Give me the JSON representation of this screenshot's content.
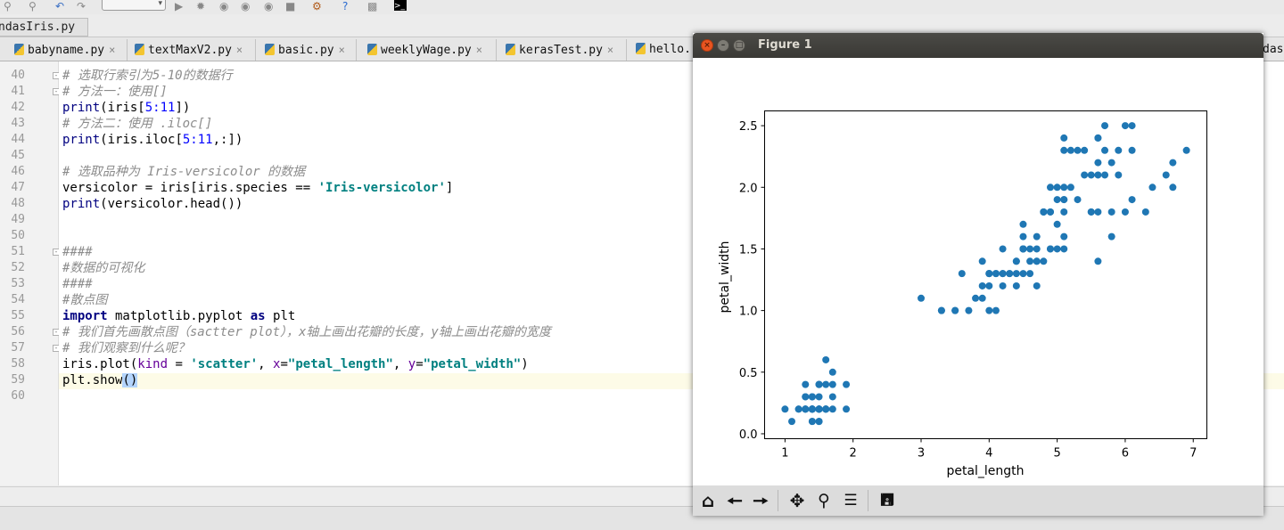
{
  "breadcrumb": {
    "file": "ndasIris.py"
  },
  "editor_tabs": [
    {
      "label": "babyname.py"
    },
    {
      "label": "textMaxV2.py"
    },
    {
      "label": "basic.py"
    },
    {
      "label": "weeklyWage.py"
    },
    {
      "label": "kerasTest.py"
    },
    {
      "label": "hello."
    },
    {
      "label": "das"
    }
  ],
  "code": {
    "line_numbers": [
      "40",
      "41",
      "42",
      "43",
      "44",
      "45",
      "46",
      "47",
      "48",
      "49",
      "50",
      "51",
      "52",
      "53",
      "54",
      "55",
      "56",
      "57",
      "58",
      "59",
      "60"
    ],
    "l40": "# 选取行索引为5-10的数据行",
    "l41": "# 方法一：使用[]",
    "l42_fn": "print",
    "l42_a": "(iris[",
    "l42_n": "5:11",
    "l42_b": "])",
    "l43": "# 方法二：使用 .iloc[]",
    "l44_fn": "print",
    "l44_a": "(iris.iloc[",
    "l44_n": "5:11",
    "l44_b": ",:])",
    "l46": "# 选取品种为 Iris-versicolor 的数据",
    "l47_a": "versicolor = iris[iris.species == ",
    "l47_s": "'Iris-versicolor'",
    "l47_b": "]",
    "l48_fn": "print",
    "l48_a": "(versicolor.head())",
    "l51": "####",
    "l52": "#数据的可视化",
    "l53": "####",
    "l54": "#散点图",
    "l55_k1": "import",
    "l55_a": " matplotlib.pyplot ",
    "l55_k2": "as",
    "l55_b": " plt",
    "l56": "# 我们首先画散点图（sactter plot），x轴上画出花瓣的长度，y轴上画出花瓣的宽度",
    "l57": "# 我们观察到什么呢？",
    "l58_a": "iris.plot(",
    "l58_k1": "kind",
    "l58_b": " = ",
    "l58_s1": "'scatter'",
    "l58_c": ", ",
    "l58_k2": "x",
    "l58_d": "=",
    "l58_s2": "\"petal_length\"",
    "l58_e": ", ",
    "l58_k3": "y",
    "l58_f": "=",
    "l58_s3": "\"petal_width\"",
    "l58_g": ")",
    "l59_a": "plt.show",
    "l59_b": "()"
  },
  "figure": {
    "title": "Figure 1",
    "toolbar": [
      "home-icon",
      "back-icon",
      "forward-icon",
      "pan-icon",
      "zoom-icon",
      "configure-icon",
      "save-icon"
    ]
  },
  "chart_data": {
    "type": "scatter",
    "xlabel": "petal_length",
    "ylabel": "petal_width",
    "xlim": [
      0.7,
      7.2
    ],
    "ylim": [
      -0.04,
      2.62
    ],
    "xticks": [
      1,
      2,
      3,
      4,
      5,
      6,
      7
    ],
    "yticks": [
      0.0,
      0.5,
      1.0,
      1.5,
      2.0,
      2.5
    ],
    "ytick_labels": [
      "0.0",
      "0.5",
      "1.0",
      "1.5",
      "2.0",
      "2.5"
    ],
    "marker_color": "#1f77b4",
    "grid": false,
    "points": [
      [
        1.4,
        0.2
      ],
      [
        1.4,
        0.2
      ],
      [
        1.3,
        0.2
      ],
      [
        1.5,
        0.2
      ],
      [
        1.4,
        0.2
      ],
      [
        1.7,
        0.4
      ],
      [
        1.4,
        0.3
      ],
      [
        1.5,
        0.2
      ],
      [
        1.4,
        0.2
      ],
      [
        1.5,
        0.1
      ],
      [
        1.5,
        0.2
      ],
      [
        1.6,
        0.2
      ],
      [
        1.4,
        0.1
      ],
      [
        1.1,
        0.1
      ],
      [
        1.2,
        0.2
      ],
      [
        1.5,
        0.4
      ],
      [
        1.3,
        0.4
      ],
      [
        1.4,
        0.3
      ],
      [
        1.7,
        0.3
      ],
      [
        1.5,
        0.3
      ],
      [
        1.7,
        0.2
      ],
      [
        1.5,
        0.4
      ],
      [
        1.0,
        0.2
      ],
      [
        1.7,
        0.5
      ],
      [
        1.9,
        0.2
      ],
      [
        1.6,
        0.2
      ],
      [
        1.6,
        0.4
      ],
      [
        1.5,
        0.2
      ],
      [
        1.4,
        0.2
      ],
      [
        1.6,
        0.2
      ],
      [
        1.6,
        0.2
      ],
      [
        1.5,
        0.4
      ],
      [
        1.5,
        0.1
      ],
      [
        1.4,
        0.2
      ],
      [
        1.5,
        0.2
      ],
      [
        1.2,
        0.2
      ],
      [
        1.3,
        0.2
      ],
      [
        1.4,
        0.1
      ],
      [
        1.3,
        0.2
      ],
      [
        1.5,
        0.2
      ],
      [
        1.3,
        0.3
      ],
      [
        1.3,
        0.3
      ],
      [
        1.3,
        0.2
      ],
      [
        1.6,
        0.6
      ],
      [
        1.9,
        0.4
      ],
      [
        1.4,
        0.3
      ],
      [
        1.6,
        0.2
      ],
      [
        1.4,
        0.2
      ],
      [
        1.5,
        0.2
      ],
      [
        1.4,
        0.2
      ],
      [
        4.7,
        1.4
      ],
      [
        4.5,
        1.5
      ],
      [
        4.9,
        1.5
      ],
      [
        4.0,
        1.3
      ],
      [
        4.6,
        1.5
      ],
      [
        4.5,
        1.3
      ],
      [
        4.7,
        1.6
      ],
      [
        3.3,
        1.0
      ],
      [
        4.6,
        1.3
      ],
      [
        3.9,
        1.4
      ],
      [
        3.5,
        1.0
      ],
      [
        4.2,
        1.5
      ],
      [
        4.0,
        1.0
      ],
      [
        4.7,
        1.4
      ],
      [
        3.6,
        1.3
      ],
      [
        4.4,
        1.4
      ],
      [
        4.5,
        1.5
      ],
      [
        4.1,
        1.0
      ],
      [
        4.5,
        1.5
      ],
      [
        3.9,
        1.1
      ],
      [
        4.8,
        1.8
      ],
      [
        4.0,
        1.3
      ],
      [
        4.9,
        1.5
      ],
      [
        4.7,
        1.2
      ],
      [
        4.3,
        1.3
      ],
      [
        4.4,
        1.4
      ],
      [
        4.8,
        1.4
      ],
      [
        5.0,
        1.7
      ],
      [
        4.5,
        1.5
      ],
      [
        3.5,
        1.0
      ],
      [
        3.8,
        1.1
      ],
      [
        3.7,
        1.0
      ],
      [
        3.9,
        1.2
      ],
      [
        5.1,
        1.6
      ],
      [
        4.5,
        1.5
      ],
      [
        4.5,
        1.6
      ],
      [
        4.7,
        1.5
      ],
      [
        4.4,
        1.3
      ],
      [
        4.1,
        1.3
      ],
      [
        4.0,
        1.3
      ],
      [
        4.4,
        1.2
      ],
      [
        4.6,
        1.4
      ],
      [
        4.0,
        1.2
      ],
      [
        3.3,
        1.0
      ],
      [
        4.2,
        1.3
      ],
      [
        4.2,
        1.2
      ],
      [
        4.2,
        1.3
      ],
      [
        4.3,
        1.3
      ],
      [
        3.0,
        1.1
      ],
      [
        4.1,
        1.3
      ],
      [
        6.0,
        2.5
      ],
      [
        5.1,
        1.9
      ],
      [
        5.9,
        2.1
      ],
      [
        5.6,
        1.8
      ],
      [
        5.8,
        2.2
      ],
      [
        6.6,
        2.1
      ],
      [
        4.5,
        1.7
      ],
      [
        6.3,
        1.8
      ],
      [
        5.8,
        1.8
      ],
      [
        6.1,
        2.5
      ],
      [
        5.1,
        2.0
      ],
      [
        5.3,
        1.9
      ],
      [
        5.5,
        2.1
      ],
      [
        5.0,
        2.0
      ],
      [
        5.1,
        2.4
      ],
      [
        5.3,
        2.3
      ],
      [
        5.5,
        1.8
      ],
      [
        6.7,
        2.2
      ],
      [
        6.9,
        2.3
      ],
      [
        5.0,
        1.5
      ],
      [
        5.7,
        2.3
      ],
      [
        4.9,
        2.0
      ],
      [
        6.7,
        2.0
      ],
      [
        4.9,
        1.8
      ],
      [
        5.7,
        2.1
      ],
      [
        6.0,
        1.8
      ],
      [
        4.8,
        1.8
      ],
      [
        4.9,
        1.8
      ],
      [
        5.6,
        2.1
      ],
      [
        5.8,
        1.6
      ],
      [
        6.1,
        1.9
      ],
      [
        6.4,
        2.0
      ],
      [
        5.6,
        2.2
      ],
      [
        5.1,
        1.5
      ],
      [
        5.6,
        1.4
      ],
      [
        6.1,
        2.3
      ],
      [
        5.6,
        2.4
      ],
      [
        5.5,
        1.8
      ],
      [
        4.8,
        1.8
      ],
      [
        5.4,
        2.1
      ],
      [
        5.6,
        2.4
      ],
      [
        5.1,
        2.3
      ],
      [
        5.1,
        1.9
      ],
      [
        5.9,
        2.3
      ],
      [
        5.7,
        2.5
      ],
      [
        5.2,
        2.3
      ],
      [
        5.0,
        1.9
      ],
      [
        5.2,
        2.0
      ],
      [
        5.4,
        2.3
      ],
      [
        5.1,
        1.8
      ]
    ]
  }
}
